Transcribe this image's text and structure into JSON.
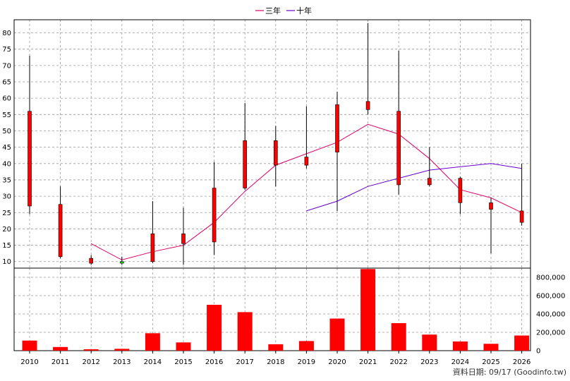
{
  "legend": {
    "three_year": "三年",
    "ten_year": "十年"
  },
  "footer": {
    "text": "資料日期: 09/17  (Goodinfo.tw)"
  },
  "colors": {
    "up": "#ff0000",
    "down": "#00ee00",
    "three_year": "#dd0066",
    "ten_year": "#6600cc",
    "volume": "#ff0000",
    "grid": "#999999"
  },
  "chart_data": {
    "type": "candlestick+line+bar",
    "categories": [
      "2010",
      "2011",
      "2012",
      "2013",
      "2014",
      "2015",
      "2016",
      "2017",
      "2018",
      "2019",
      "2020",
      "2021",
      "2022",
      "2023",
      "2024",
      "2025",
      "2026"
    ],
    "price_axis": {
      "ylim": [
        8,
        84
      ],
      "ticks": [
        10,
        15,
        20,
        25,
        30,
        35,
        40,
        45,
        50,
        55,
        60,
        65,
        70,
        75,
        80
      ]
    },
    "volume_axis": {
      "ylim": [
        0,
        900000
      ],
      "ticks": [
        0,
        200000,
        400000,
        600000,
        800000
      ],
      "tick_labels": [
        "0",
        "200,000",
        "400,000",
        "600,000",
        "800,000"
      ]
    },
    "candles": [
      {
        "o": 27,
        "c": 56,
        "h": 73,
        "l": 24.5
      },
      {
        "o": 11.5,
        "c": 27.5,
        "h": 33,
        "l": 11
      },
      {
        "o": 9.5,
        "c": 11,
        "h": 12,
        "l": 9
      },
      {
        "o": 10,
        "c": 9.5,
        "h": 11.5,
        "l": 9
      },
      {
        "o": 10,
        "c": 18.5,
        "h": 28.5,
        "l": 9.5
      },
      {
        "o": 15.5,
        "c": 18.5,
        "h": 26.5,
        "l": 9
      },
      {
        "o": 16,
        "c": 32.5,
        "h": 40.5,
        "l": 12
      },
      {
        "o": 32.5,
        "c": 47,
        "h": 58.5,
        "l": 32
      },
      {
        "o": 39.5,
        "c": 47,
        "h": 51.5,
        "l": 33
      },
      {
        "o": 39.5,
        "c": 42,
        "h": 57.5,
        "l": 38.5
      },
      {
        "o": 43.5,
        "c": 58,
        "h": 62,
        "l": 25.5
      },
      {
        "o": 56.5,
        "c": 59,
        "h": 83,
        "l": 55
      },
      {
        "o": 33.5,
        "c": 56,
        "h": 74.5,
        "l": 30.5
      },
      {
        "o": 33.5,
        "c": 35.5,
        "h": 45,
        "l": 33
      },
      {
        "o": 28,
        "c": 35.5,
        "h": 36,
        "l": 24.5
      },
      {
        "o": 26,
        "c": 28,
        "h": 29.5,
        "l": 12.5
      },
      {
        "o": 22,
        "c": 25.5,
        "h": 40,
        "l": 21
      }
    ],
    "series": [
      {
        "name": "三年",
        "values": [
          null,
          null,
          15.5,
          10.5,
          13,
          15,
          22,
          31.5,
          39.5,
          43,
          46.5,
          52,
          49,
          41.5,
          32,
          29.5,
          25
        ]
      },
      {
        "name": "十年",
        "values": [
          null,
          null,
          null,
          null,
          null,
          null,
          null,
          null,
          null,
          25.5,
          28.5,
          33,
          35.5,
          38,
          39,
          40,
          38.5
        ]
      }
    ],
    "volume": [
      110000,
      40000,
      15000,
      20000,
      190000,
      90000,
      500000,
      420000,
      70000,
      105000,
      350000,
      890000,
      300000,
      175000,
      100000,
      75000,
      165000
    ],
    "grid": true,
    "legend_position": "top-center"
  }
}
